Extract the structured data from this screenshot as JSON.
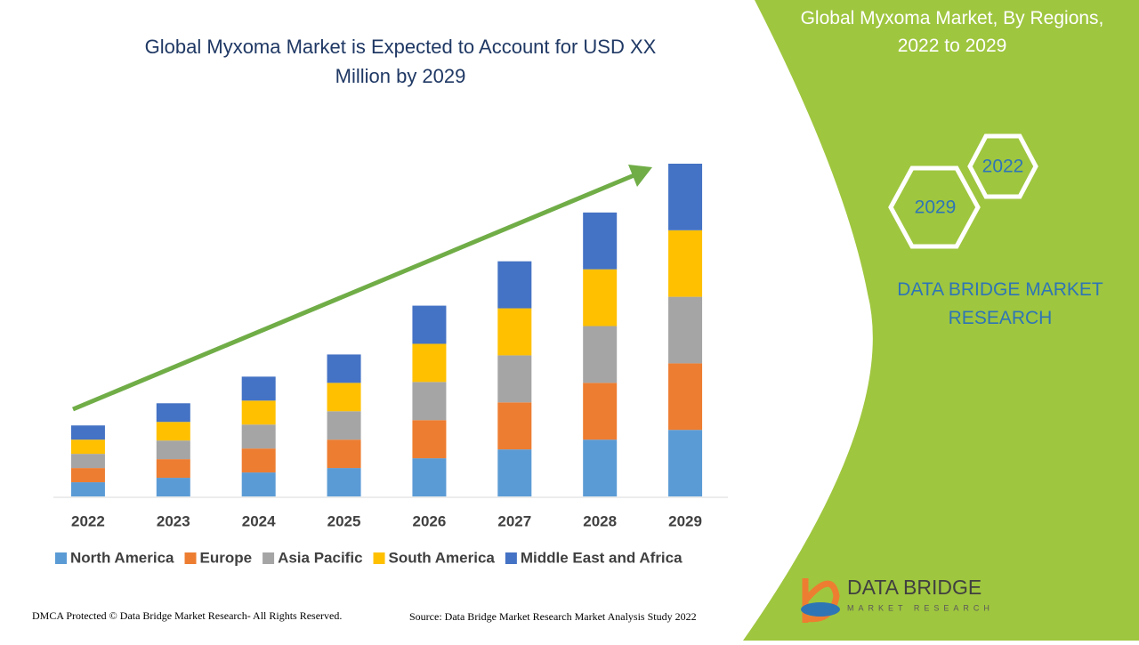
{
  "chart_data": {
    "type": "stacked-bar",
    "title": "Global Myxoma Market is Expected to Account for USD XX Million by 2029",
    "categories": [
      "2022",
      "2023",
      "2024",
      "2025",
      "2026",
      "2027",
      "2028",
      "2029"
    ],
    "series": [
      {
        "name": "North America",
        "color": "#5b9bd5",
        "values": [
          16,
          21,
          27,
          32,
          43,
          53,
          64,
          75
        ]
      },
      {
        "name": "Europe",
        "color": "#ed7d31",
        "values": [
          16,
          21,
          27,
          32,
          43,
          53,
          64,
          75
        ]
      },
      {
        "name": "Asia Pacific",
        "color": "#a5a5a5",
        "values": [
          16,
          21,
          27,
          32,
          43,
          53,
          64,
          75
        ]
      },
      {
        "name": "South America",
        "color": "#ffc000",
        "values": [
          16,
          21,
          27,
          32,
          43,
          53,
          64,
          75
        ]
      },
      {
        "name": "Middle East and Africa",
        "color": "#4472c4",
        "values": [
          16,
          21,
          27,
          32,
          43,
          53,
          64,
          75
        ]
      }
    ],
    "legend": "bottom"
  },
  "panel": {
    "title": "Global Myxoma Market, By Regions, 2022 to 2029",
    "hex_top": "2022",
    "hex_bottom": "2029",
    "brand": "DATA BRIDGE MARKET RESEARCH"
  },
  "logo": {
    "name": "DATA BRIDGE",
    "tagline": "MARKET RESEARCH"
  },
  "footer": {
    "left": "DMCA Protected © Data Bridge Market Research- All Rights Reserved.",
    "right": "Source: Data Bridge Market Research Market Analysis Study 2022"
  }
}
